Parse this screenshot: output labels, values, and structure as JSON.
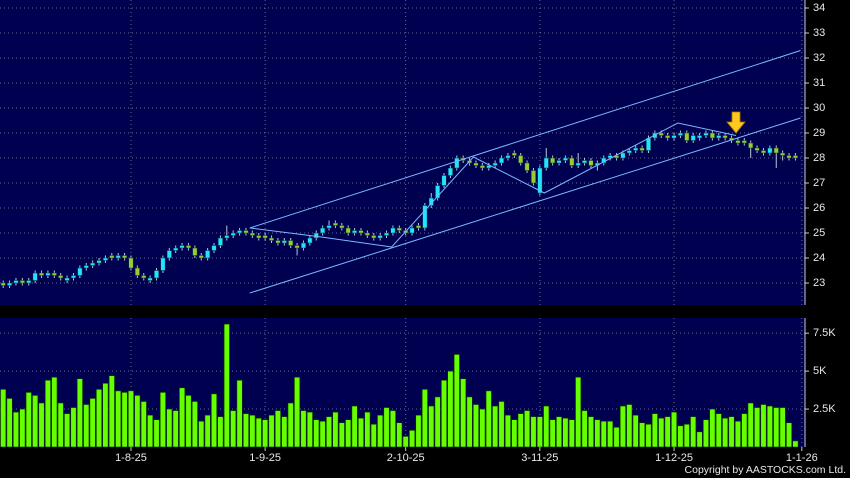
{
  "chart_data": [
    {
      "type": "candlestick",
      "up_color": "#22e4ff",
      "down_color": "#99cc33",
      "line_color": "#7ab8ff",
      "xlim": [
        -0.5,
        125.5
      ],
      "ylim": [
        22.12,
        34.32
      ],
      "yticks": [
        23,
        24,
        25,
        26,
        27,
        28,
        29,
        30,
        31,
        32,
        33,
        34
      ],
      "grid": true,
      "ohlc": [
        [
          23.0,
          23.1,
          22.8,
          22.9
        ],
        [
          22.9,
          23.1,
          22.8,
          23.0
        ],
        [
          23.0,
          23.2,
          22.9,
          23.1
        ],
        [
          23.1,
          23.2,
          22.9,
          23.0
        ],
        [
          23.0,
          23.2,
          22.9,
          23.1
        ],
        [
          23.1,
          23.5,
          23.0,
          23.4
        ],
        [
          23.4,
          23.5,
          23.2,
          23.3
        ],
        [
          23.3,
          23.5,
          23.2,
          23.4
        ],
        [
          23.4,
          23.5,
          23.2,
          23.3
        ],
        [
          23.3,
          23.4,
          23.1,
          23.2
        ],
        [
          23.1,
          23.3,
          23.0,
          23.2
        ],
        [
          23.2,
          23.4,
          23.1,
          23.3
        ],
        [
          23.3,
          23.7,
          23.2,
          23.6
        ],
        [
          23.6,
          23.8,
          23.5,
          23.7
        ],
        [
          23.7,
          23.9,
          23.6,
          23.8
        ],
        [
          23.8,
          24.0,
          23.7,
          23.9
        ],
        [
          23.9,
          24.1,
          23.8,
          24.0
        ],
        [
          24.1,
          24.2,
          23.9,
          24.0
        ],
        [
          24.0,
          24.2,
          23.9,
          24.1
        ],
        [
          24.1,
          24.2,
          23.9,
          24.0
        ],
        [
          24.0,
          24.1,
          23.5,
          23.6
        ],
        [
          23.6,
          23.7,
          23.2,
          23.3
        ],
        [
          23.3,
          23.4,
          23.1,
          23.2
        ],
        [
          23.1,
          23.3,
          23.0,
          23.2
        ],
        [
          23.2,
          23.6,
          23.1,
          23.5
        ],
        [
          23.5,
          24.1,
          23.4,
          24.0
        ],
        [
          24.0,
          24.4,
          23.9,
          24.3
        ],
        [
          24.3,
          24.5,
          24.2,
          24.4
        ],
        [
          24.4,
          24.6,
          24.3,
          24.5
        ],
        [
          24.5,
          24.6,
          24.3,
          24.4
        ],
        [
          24.4,
          24.5,
          24.0,
          24.1
        ],
        [
          24.1,
          24.2,
          23.9,
          24.0
        ],
        [
          24.0,
          24.4,
          23.9,
          24.3
        ],
        [
          24.3,
          24.6,
          24.2,
          24.5
        ],
        [
          24.5,
          24.9,
          24.4,
          24.8
        ],
        [
          24.8,
          25.3,
          24.7,
          24.9
        ],
        [
          24.9,
          25.1,
          24.8,
          25.0
        ],
        [
          25.0,
          25.2,
          24.9,
          25.1
        ],
        [
          25.1,
          25.2,
          24.9,
          25.0
        ],
        [
          25.0,
          25.1,
          24.8,
          24.9
        ],
        [
          24.9,
          25.0,
          24.7,
          24.8
        ],
        [
          24.9,
          25.0,
          24.7,
          24.8
        ],
        [
          24.8,
          24.9,
          24.6,
          24.7
        ],
        [
          24.7,
          24.8,
          24.5,
          24.6
        ],
        [
          24.6,
          24.8,
          24.5,
          24.7
        ],
        [
          24.7,
          24.8,
          24.4,
          24.5
        ],
        [
          24.5,
          24.6,
          24.1,
          24.4
        ],
        [
          24.4,
          24.7,
          24.3,
          24.6
        ],
        [
          24.6,
          24.9,
          24.5,
          24.8
        ],
        [
          24.8,
          25.1,
          24.7,
          25.0
        ],
        [
          25.0,
          25.3,
          24.9,
          25.2
        ],
        [
          25.2,
          25.5,
          25.1,
          25.3
        ],
        [
          25.4,
          25.5,
          25.2,
          25.3
        ],
        [
          25.3,
          25.4,
          25.1,
          25.2
        ],
        [
          25.2,
          25.3,
          24.9,
          25.0
        ],
        [
          25.0,
          25.2,
          24.9,
          25.1
        ],
        [
          25.1,
          25.2,
          24.9,
          25.0
        ],
        [
          25.0,
          25.1,
          24.8,
          24.9
        ],
        [
          24.9,
          25.0,
          24.7,
          24.8
        ],
        [
          24.8,
          25.0,
          24.7,
          24.9
        ],
        [
          24.9,
          25.1,
          24.8,
          25.0
        ],
        [
          25.0,
          25.3,
          24.9,
          25.2
        ],
        [
          25.2,
          25.3,
          25.0,
          25.1
        ],
        [
          25.1,
          25.2,
          24.9,
          25.0
        ],
        [
          25.0,
          25.3,
          24.9,
          25.2
        ],
        [
          25.3,
          25.4,
          25.1,
          25.2
        ],
        [
          25.2,
          26.2,
          25.1,
          26.1
        ],
        [
          26.1,
          26.6,
          26.0,
          26.4
        ],
        [
          26.4,
          27.0,
          26.3,
          26.9
        ],
        [
          26.9,
          27.4,
          26.8,
          27.3
        ],
        [
          27.3,
          27.7,
          27.2,
          27.6
        ],
        [
          27.6,
          28.1,
          27.5,
          28.0
        ],
        [
          28.0,
          28.1,
          27.8,
          27.9
        ],
        [
          27.9,
          28.0,
          27.7,
          27.8
        ],
        [
          27.8,
          27.9,
          27.6,
          27.7
        ],
        [
          27.7,
          27.8,
          27.5,
          27.6
        ],
        [
          27.6,
          27.8,
          27.5,
          27.7
        ],
        [
          27.7,
          27.9,
          27.6,
          27.8
        ],
        [
          27.8,
          28.1,
          27.7,
          28.0
        ],
        [
          28.0,
          28.2,
          27.9,
          28.1
        ],
        [
          28.2,
          28.3,
          28.0,
          28.1
        ],
        [
          28.1,
          28.2,
          27.7,
          27.8
        ],
        [
          27.8,
          27.9,
          27.4,
          27.5
        ],
        [
          27.5,
          27.6,
          26.9,
          27.0
        ],
        [
          26.6,
          27.7,
          26.5,
          27.6
        ],
        [
          27.6,
          28.4,
          27.5,
          28.0
        ],
        [
          28.0,
          28.1,
          27.7,
          27.8
        ],
        [
          27.8,
          28.0,
          27.7,
          27.9
        ],
        [
          27.9,
          28.1,
          27.8,
          28.0
        ],
        [
          28.0,
          28.1,
          27.6,
          27.7
        ],
        [
          27.7,
          28.2,
          27.6,
          27.8
        ],
        [
          27.8,
          28.0,
          27.7,
          27.9
        ],
        [
          27.9,
          28.0,
          27.6,
          27.7
        ],
        [
          27.7,
          27.9,
          27.5,
          27.8
        ],
        [
          27.8,
          28.1,
          27.7,
          28.0
        ],
        [
          28.0,
          28.2,
          27.9,
          28.1
        ],
        [
          28.1,
          28.2,
          27.9,
          28.0
        ],
        [
          28.0,
          28.3,
          27.9,
          28.2
        ],
        [
          28.2,
          28.4,
          28.1,
          28.3
        ],
        [
          28.3,
          28.5,
          28.2,
          28.4
        ],
        [
          28.4,
          28.5,
          28.2,
          28.3
        ],
        [
          28.3,
          28.9,
          28.2,
          28.8
        ],
        [
          28.8,
          29.1,
          28.7,
          29.0
        ],
        [
          29.0,
          29.1,
          28.8,
          28.9
        ],
        [
          28.9,
          29.0,
          28.7,
          28.8
        ],
        [
          28.8,
          29.0,
          28.7,
          28.9
        ],
        [
          28.9,
          29.1,
          28.8,
          29.0
        ],
        [
          29.0,
          29.1,
          28.6,
          28.7
        ],
        [
          28.7,
          29.0,
          28.6,
          28.9
        ],
        [
          28.8,
          29.0,
          28.7,
          28.9
        ],
        [
          28.9,
          29.1,
          28.8,
          29.0
        ],
        [
          29.0,
          29.1,
          28.7,
          28.8
        ],
        [
          28.8,
          29.0,
          28.7,
          28.9
        ],
        [
          28.9,
          29.0,
          28.7,
          28.8
        ],
        [
          28.8,
          28.9,
          28.6,
          28.7
        ],
        [
          28.7,
          28.8,
          28.5,
          28.6
        ],
        [
          28.7,
          28.8,
          28.5,
          28.6
        ],
        [
          28.6,
          28.7,
          28.0,
          28.4
        ],
        [
          28.4,
          28.5,
          28.2,
          28.3
        ],
        [
          28.3,
          28.4,
          28.1,
          28.2
        ],
        [
          28.2,
          28.5,
          28.1,
          28.4
        ],
        [
          28.4,
          28.5,
          27.6,
          28.2
        ],
        [
          28.2,
          28.3,
          27.9,
          28.1
        ],
        [
          28.1,
          28.2,
          27.9,
          28.0
        ],
        [
          28.1,
          28.2,
          27.9,
          28.0
        ]
      ],
      "trend_lines": [
        {
          "x": [
            38.6,
            124.8
          ],
          "y": [
            25.2,
            32.3
          ]
        },
        {
          "x": [
            38.6,
            124.8
          ],
          "y": [
            22.6,
            29.6
          ]
        },
        {
          "x": [
            38.6,
            49.8,
            60.8,
            73.6,
            84.7,
            105.6,
            114.7
          ],
          "y": [
            25.2,
            24.84,
            24.44,
            28.04,
            26.6,
            29.4,
            28.9
          ]
        }
      ]
    },
    {
      "type": "bar",
      "color": "#66ff00",
      "xlim": [
        -0.5,
        125.5
      ],
      "ylim": [
        0,
        8500
      ],
      "yticks": [
        {
          "value": 2500,
          "label": "2.5K"
        },
        {
          "value": 5000,
          "label": "5K"
        },
        {
          "value": 7500,
          "label": "7.5K"
        }
      ],
      "xticks": [
        {
          "value": 20,
          "label": "1-8-25"
        },
        {
          "value": 41,
          "label": "1-9-25"
        },
        {
          "value": 63,
          "label": "2-10-25"
        },
        {
          "value": 84,
          "label": "3-11-25"
        },
        {
          "value": 105,
          "label": "1-12-25"
        },
        {
          "value": 125,
          "label": "1-1-26"
        }
      ],
      "grid": true,
      "values": [
        3800,
        3200,
        2300,
        2500,
        3600,
        3400,
        2900,
        4400,
        4600,
        2900,
        2200,
        2600,
        4500,
        2800,
        3200,
        3800,
        4200,
        4700,
        3700,
        3600,
        3700,
        3400,
        3000,
        2100,
        1800,
        3600,
        2500,
        2400,
        3900,
        3400,
        3000,
        1700,
        2100,
        3500,
        2000,
        8100,
        2400,
        4400,
        2200,
        2100,
        1900,
        1800,
        2100,
        2400,
        2000,
        2900,
        4600,
        2400,
        2300,
        1800,
        1700,
        2000,
        2300,
        1600,
        1800,
        2700,
        1900,
        2300,
        1500,
        2100,
        2600,
        2400,
        1600,
        700,
        1100,
        2100,
        3800,
        2700,
        3300,
        4400,
        5000,
        6100,
        4500,
        3300,
        2800,
        2500,
        3700,
        2700,
        3000,
        2100,
        1800,
        2200,
        2400,
        2000,
        2000,
        2700,
        1800,
        2000,
        1900,
        1800,
        4600,
        2400,
        2000,
        1800,
        1700,
        1700,
        1300,
        2700,
        2800,
        2100,
        1600,
        1500,
        2200,
        1900,
        2000,
        2300,
        1400,
        1500,
        2000,
        1000,
        1800,
        2500,
        2200,
        1900,
        2000,
        1700,
        2200,
        2900,
        2600,
        2800,
        2700,
        2600,
        2600,
        1600,
        400
      ]
    }
  ],
  "copyright": "Copyright by AASTOCKS.com Ltd."
}
